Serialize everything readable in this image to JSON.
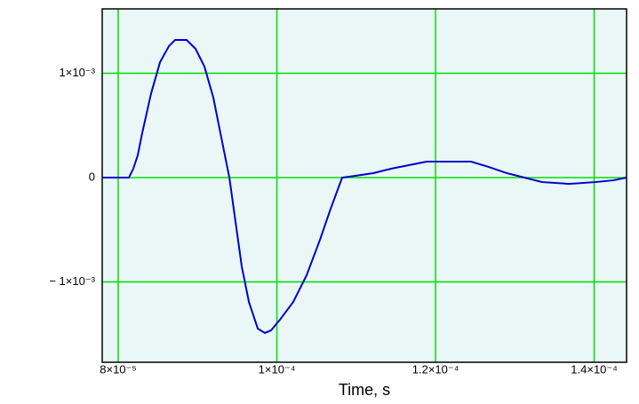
{
  "chart_data": {
    "type": "line",
    "x_label": "Time, s",
    "xlim": [
      7.798e-05,
      0.00014408
    ],
    "ylim": [
      -0.00177,
      0.001617
    ],
    "xticks": [
      {
        "value": 8e-05,
        "label": "8×10⁻⁵"
      },
      {
        "value": 0.0001,
        "label": "1×10⁻⁴"
      },
      {
        "value": 0.00012,
        "label": "1.2×10⁻⁴"
      },
      {
        "value": 0.00014,
        "label": "1.4×10⁻⁴"
      }
    ],
    "yticks": [
      {
        "value": -0.001,
        "label": "− 1×10⁻³"
      },
      0,
      {
        "value": 0.001,
        "label": "1×10⁻³"
      }
    ],
    "grid": true,
    "grid_color": "#00dd00",
    "series": [
      {
        "color": "#0000cc",
        "x": [
          7.798e-05,
          8.134e-05,
          8.19e-05,
          8.246e-05,
          8.302e-05,
          8.415e-05,
          8.527e-05,
          8.639e-05,
          8.717e-05,
          8.863e-05,
          8.975e-05,
          9.087e-05,
          9.199e-05,
          9.311e-05,
          9.401e-05,
          9.479e-05,
          9.557e-05,
          9.647e-05,
          9.759e-05,
          9.849e-05,
          9.927e-05,
          0.00010039,
          0.00010207,
          0.00010375,
          0.00010543,
          0.00010678,
          0.00010823,
          0.00010991,
          0.00011216,
          0.0001144,
          0.00011664,
          0.00011888,
          0.00012112,
          0.00012448,
          0.00012672,
          0.00012896,
          0.0001312,
          0.00013344,
          0.0001368,
          0.00014016,
          0.0001424,
          0.00014408
        ],
        "values": [
          0,
          0,
          8.5e-05,
          0.000213,
          0.000426,
          0.000809,
          0.001106,
          0.00126,
          0.001319,
          0.001319,
          0.001234,
          0.001064,
          0.000766,
          0.00034,
          0,
          -0.000426,
          -0.000851,
          -0.001191,
          -0.001447,
          -0.001489,
          -0.001464,
          -0.001362,
          -0.001191,
          -0.000936,
          -0.000596,
          -0.000298,
          0,
          1.7e-05,
          4.3e-05,
          8.5e-05,
          0.000119,
          0.000153,
          0.000153,
          0.000153,
          0.000102,
          4.3e-05,
          0,
          -4.3e-05,
          -6e-05,
          -4.3e-05,
          -2.6e-05,
          0
        ]
      }
    ]
  }
}
